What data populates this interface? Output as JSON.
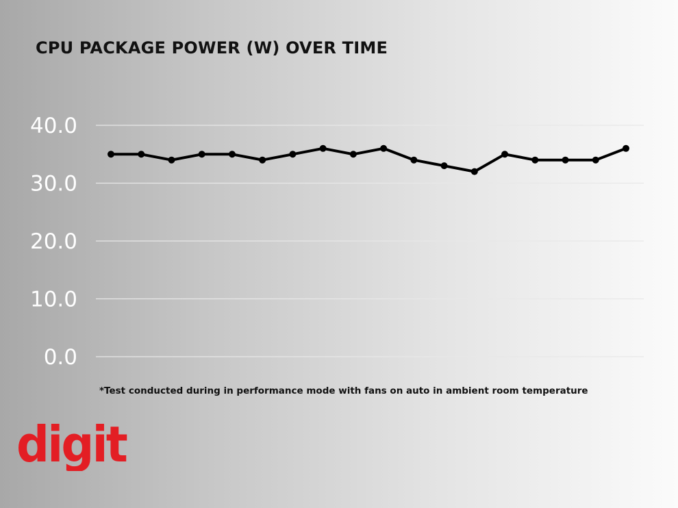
{
  "chart_data": {
    "type": "line",
    "title": "CPU PACKAGE POWER (W) OVER TIME",
    "xlabel": "",
    "ylabel": "",
    "ylim": [
      0,
      40
    ],
    "yticks": [
      "0.0",
      "10.0",
      "20.0",
      "30.0",
      "40.0"
    ],
    "y_tick_values": [
      0,
      10,
      20,
      30,
      40
    ],
    "grid": true,
    "x": [
      1,
      2,
      3,
      4,
      5,
      6,
      7,
      8,
      9,
      10,
      11,
      12,
      13,
      14,
      15,
      16,
      17,
      18
    ],
    "series": [
      {
        "values": [
          35,
          35,
          34,
          35,
          35,
          34,
          35,
          36,
          35,
          36,
          34,
          33,
          32,
          35,
          34,
          34,
          34,
          36
        ]
      }
    ],
    "line_color": "#000000",
    "tick_label_color": "#ffffff",
    "gridline_color": "#e8e8e8"
  },
  "footnote": "*Test conducted during in performance mode with fans on auto in ambient room temperature",
  "logo": {
    "text": "digit",
    "color": "#e31e24"
  }
}
